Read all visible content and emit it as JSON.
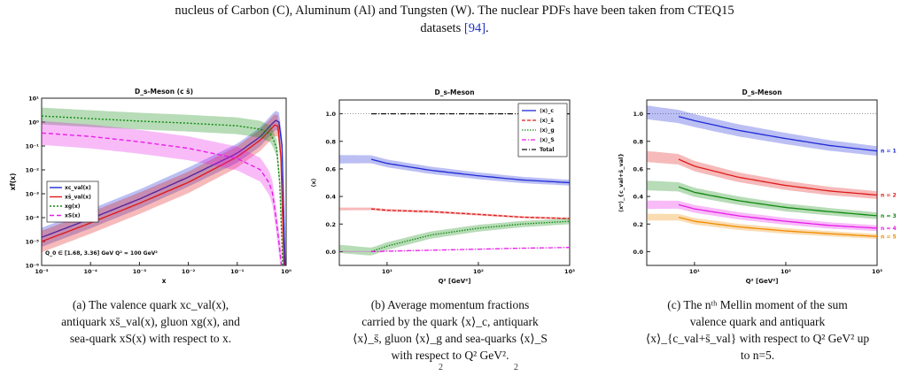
{
  "top_text": {
    "line1": "nucleus of Carbon (C), Aluminum (Al) and Tungsten (W). The nuclear PDFs have been taken from CTEQ15",
    "line2_pre": "datasets ",
    "line2_ref": "[94]",
    "line2_post": "."
  },
  "colors": {
    "blue": "#1f2bd6",
    "red": "#e01b1b",
    "green": "#108a10",
    "magenta": "#e81ee8",
    "orange": "#f08c00",
    "black": "#111111"
  },
  "panel_a": {
    "title": "D_s-Meson (c s̄)",
    "xlabel": "x",
    "ylabel": "xf(x)",
    "annotation": "Q_0 ∈ [1.68, 3.36] GeV   Q² = 100 GeV²",
    "legend": [
      "xc_val(x)",
      "xs̄_val(x)",
      "xg(x)",
      "xS(x)"
    ],
    "x_ticks": [
      "10⁻⁵",
      "10⁻⁴",
      "10⁻³",
      "10⁻²",
      "10⁻¹",
      "10⁰"
    ],
    "y_ticks": [
      "10¹",
      "10⁰",
      "10⁻¹",
      "10⁻²",
      "10⁻³",
      "10⁻⁴",
      "10⁻⁵",
      "10⁻⁶"
    ],
    "caption": [
      "(a) The valence quark xc_val(x),",
      "antiquark xs̄_val(x), gluon xg(x), and",
      "sea-quark xS(x) with respect to x."
    ]
  },
  "panel_b": {
    "title": "D_s-Meson",
    "xlabel": "Q² [GeV²]",
    "ylabel": "⟨x⟩",
    "legend": [
      "⟨x⟩_c",
      "⟨x⟩_s̄",
      "⟨x⟩_g",
      "⟨x⟩_S",
      "Total"
    ],
    "y_ticks": [
      "1.0",
      "0.8",
      "0.6",
      "0.4",
      "0.2",
      "0.0"
    ],
    "x_ticks": [
      "10¹",
      "10²",
      "10³"
    ],
    "caption": [
      "(b) Average momentum fractions",
      "carried by the quark ⟨x⟩_c, antiquark",
      "⟨x⟩_s̄, gluon ⟨x⟩_g and sea-quarks ⟨x⟩_S",
      "with respect to Q² GeV²."
    ]
  },
  "panel_c": {
    "title": "D_s-Meson",
    "xlabel": "Q² [GeV²]",
    "ylabel": "⟨xⁿ⟩_{c_val+s̄_val}",
    "labels": [
      "n = 1",
      "n = 2",
      "n = 3",
      "n = 4",
      "n = 5"
    ],
    "y_ticks": [
      "1.0",
      "0.8",
      "0.6",
      "0.4",
      "0.2",
      "0.0"
    ],
    "x_ticks": [
      "10¹",
      "10²",
      "10³"
    ],
    "caption": [
      "(c) The nᵗʰ Mellin moment of the sum",
      "valence quark and antiquark",
      "⟨x⟩_{c_val+s̄_val} with respect to Q² GeV² up",
      "to n=5."
    ]
  },
  "chart_data": [
    {
      "type": "line",
      "title": "D_s-Meson (c s̄)",
      "xlabel": "x",
      "ylabel": "xf(x)",
      "xscale": "log",
      "yscale": "log",
      "xlim": [
        1e-05,
        1
      ],
      "ylim": [
        1e-06,
        10
      ],
      "legend_position": "center-left",
      "series": [
        {
          "name": "xc_val(x)",
          "color": "#1f2bd6",
          "x": [
            1e-05,
            0.0001,
            0.001,
            0.01,
            0.1,
            0.3,
            0.6,
            0.8,
            0.95
          ],
          "y": [
            1.5e-05,
            9e-05,
            0.0006,
            0.005,
            0.05,
            0.25,
            1.2,
            0.9,
            1e-06
          ]
        },
        {
          "name": "xs̄_val(x)",
          "color": "#e01b1b",
          "x": [
            1e-05,
            0.0001,
            0.001,
            0.01,
            0.1,
            0.3,
            0.6,
            0.75,
            0.9
          ],
          "y": [
            1e-05,
            6e-05,
            0.0004,
            0.003,
            0.035,
            0.18,
            0.8,
            0.6,
            1e-06
          ]
        },
        {
          "name": "xg(x)",
          "color": "#108a10",
          "x": [
            1e-05,
            0.0001,
            0.001,
            0.01,
            0.1,
            0.3,
            0.5,
            0.7,
            0.85
          ],
          "y": [
            1.8,
            1.4,
            1.1,
            0.9,
            0.7,
            0.5,
            0.3,
            0.05,
            1e-06
          ]
        },
        {
          "name": "xS(x)",
          "color": "#e81ee8",
          "x": [
            1e-05,
            0.0001,
            0.001,
            0.01,
            0.1,
            0.3,
            0.5,
            0.65,
            0.8
          ],
          "y": [
            0.35,
            0.25,
            0.15,
            0.08,
            0.03,
            0.01,
            0.002,
            5e-05,
            1e-06
          ]
        }
      ]
    },
    {
      "type": "line",
      "title": "D_s-Meson",
      "xlabel": "Q² [GeV²]",
      "ylabel": "⟨x⟩",
      "xscale": "log",
      "xlim": [
        3,
        1000
      ],
      "ylim": [
        -0.1,
        1.1
      ],
      "legend_position": "top-right",
      "series": [
        {
          "name": "⟨x⟩_c",
          "color": "#1f2bd6",
          "x": [
            6.7,
            10,
            30,
            100,
            300,
            1000
          ],
          "y": [
            0.67,
            0.64,
            0.59,
            0.55,
            0.52,
            0.5
          ]
        },
        {
          "name": "⟨x⟩_s̄",
          "color": "#e01b1b",
          "x": [
            6.7,
            10,
            30,
            100,
            300,
            1000
          ],
          "y": [
            0.31,
            0.3,
            0.29,
            0.27,
            0.25,
            0.24
          ]
        },
        {
          "name": "⟨x⟩_g",
          "color": "#108a10",
          "x": [
            6.7,
            10,
            30,
            100,
            300,
            1000
          ],
          "y": [
            0.0,
            0.04,
            0.12,
            0.17,
            0.2,
            0.22
          ]
        },
        {
          "name": "⟨x⟩_S",
          "color": "#e81ee8",
          "x": [
            6.7,
            10,
            30,
            100,
            300,
            1000
          ],
          "y": [
            0.0,
            0.003,
            0.01,
            0.018,
            0.025,
            0.03
          ]
        },
        {
          "name": "Total",
          "color": "#111111",
          "x": [
            6.7,
            10,
            30,
            100,
            300,
            1000
          ],
          "y": [
            1.0,
            1.0,
            1.0,
            1.0,
            1.0,
            1.0
          ]
        }
      ]
    },
    {
      "type": "line",
      "title": "D_s-Meson",
      "xlabel": "Q² [GeV²]",
      "ylabel": "⟨xⁿ⟩_{c_val+s̄_val}",
      "xscale": "log",
      "xlim": [
        3,
        1000
      ],
      "ylim": [
        -0.1,
        1.1
      ],
      "series": [
        {
          "name": "n = 1",
          "color": "#1f2bd6",
          "x": [
            6.7,
            10,
            30,
            100,
            300,
            1000
          ],
          "y": [
            0.98,
            0.95,
            0.88,
            0.82,
            0.77,
            0.73
          ]
        },
        {
          "name": "n = 2",
          "color": "#e01b1b",
          "x": [
            6.7,
            10,
            30,
            100,
            300,
            1000
          ],
          "y": [
            0.67,
            0.62,
            0.54,
            0.48,
            0.44,
            0.41
          ]
        },
        {
          "name": "n = 3",
          "color": "#108a10",
          "x": [
            6.7,
            10,
            30,
            100,
            300,
            1000
          ],
          "y": [
            0.47,
            0.43,
            0.37,
            0.32,
            0.29,
            0.26
          ]
        },
        {
          "name": "n = 4",
          "color": "#e81ee8",
          "x": [
            6.7,
            10,
            30,
            100,
            300,
            1000
          ],
          "y": [
            0.34,
            0.31,
            0.26,
            0.22,
            0.19,
            0.17
          ]
        },
        {
          "name": "n = 5",
          "color": "#f08c00",
          "x": [
            6.7,
            10,
            30,
            100,
            300,
            1000
          ],
          "y": [
            0.25,
            0.22,
            0.18,
            0.15,
            0.13,
            0.11
          ]
        }
      ]
    }
  ],
  "bottom_fragment": [
    "2",
    "2"
  ]
}
